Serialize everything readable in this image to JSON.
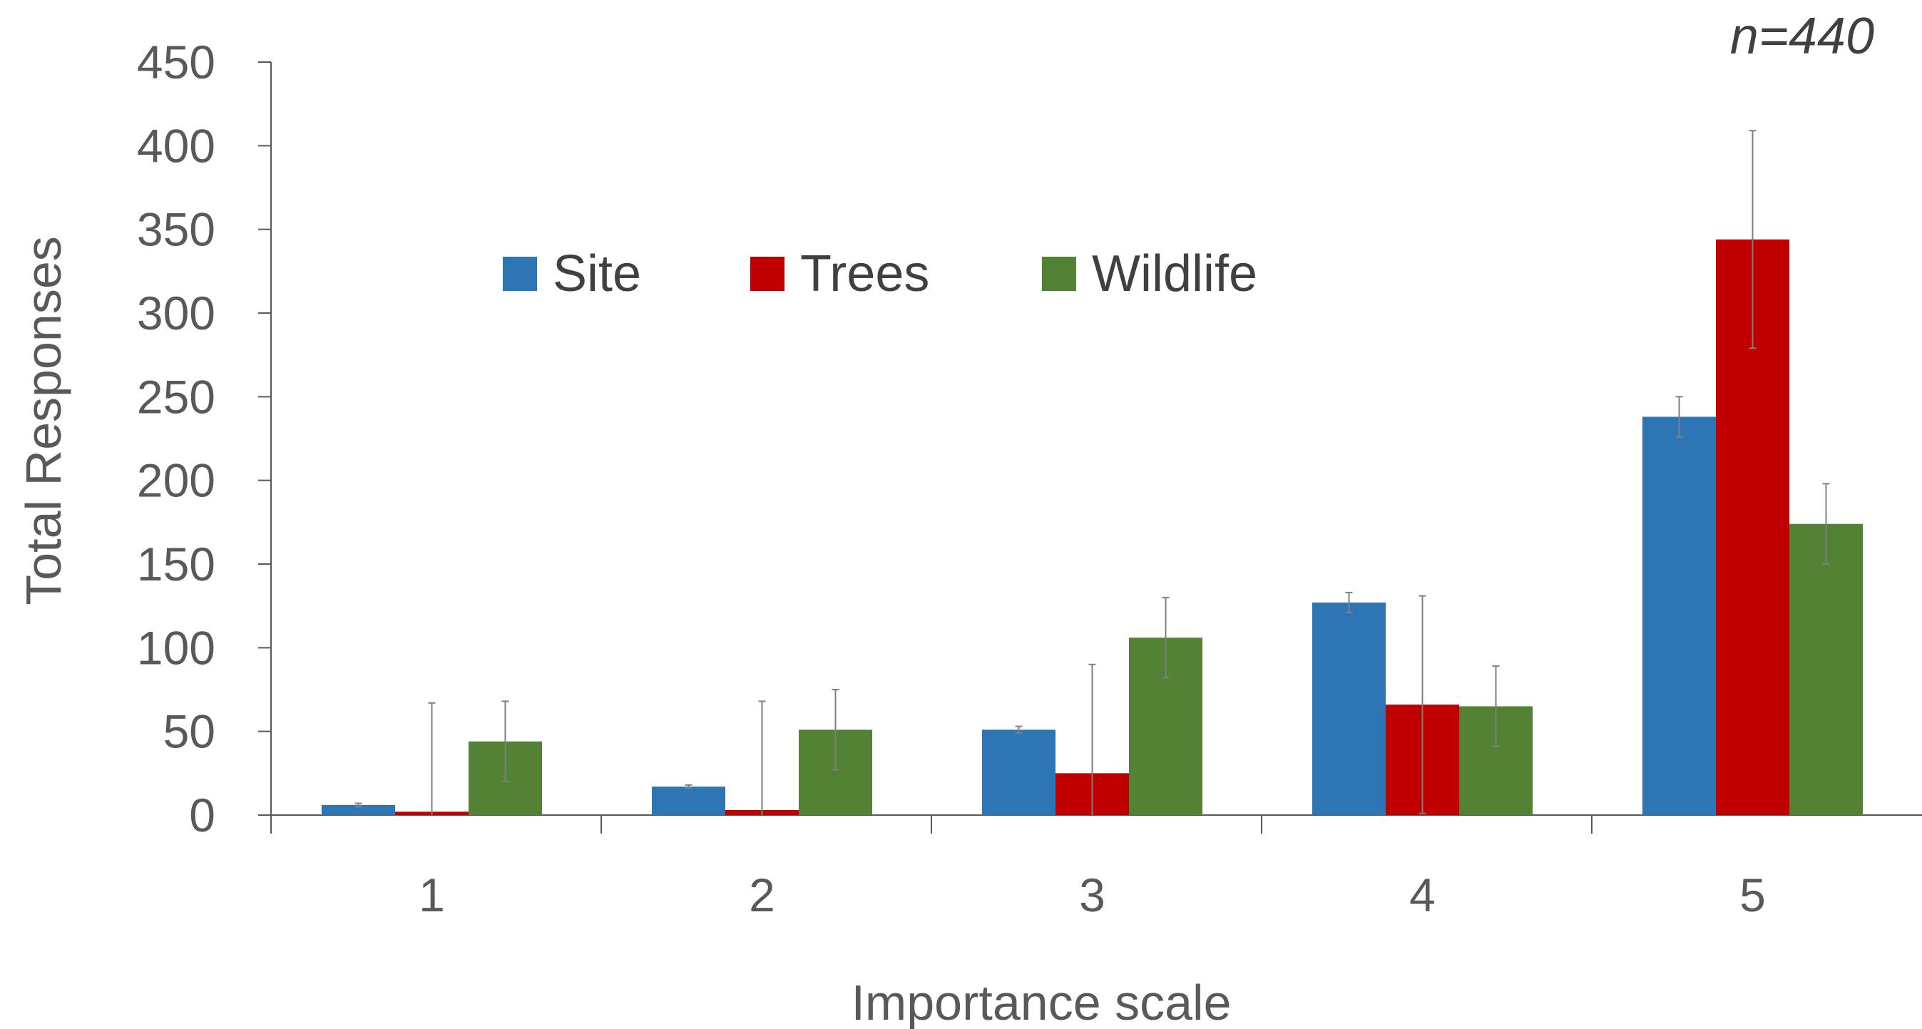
{
  "chart_data": {
    "type": "bar",
    "annotation": "n=440",
    "xlabel": "Importance scale",
    "ylabel": "Total Responses",
    "ylim": [
      0,
      450
    ],
    "yticks": [
      "0",
      "50",
      "100",
      "150",
      "200",
      "250",
      "300",
      "350",
      "400",
      "450"
    ],
    "categories": [
      "1",
      "2",
      "3",
      "4",
      "5"
    ],
    "legend_position": "top-center",
    "grid": false,
    "error_bars": true,
    "series": [
      {
        "name": "Site",
        "color": "#2E75B6",
        "values": [
          6,
          17,
          51,
          127,
          238
        ],
        "errors": [
          1,
          1,
          2,
          6,
          12
        ]
      },
      {
        "name": "Trees",
        "color": "#C00000",
        "values": [
          2,
          3,
          25,
          66,
          344
        ],
        "errors": [
          65,
          65,
          65,
          65,
          65
        ]
      },
      {
        "name": "Wildlife",
        "color": "#548235",
        "values": [
          44,
          51,
          106,
          65,
          174
        ],
        "errors": [
          24,
          24,
          24,
          24,
          24
        ]
      }
    ]
  }
}
